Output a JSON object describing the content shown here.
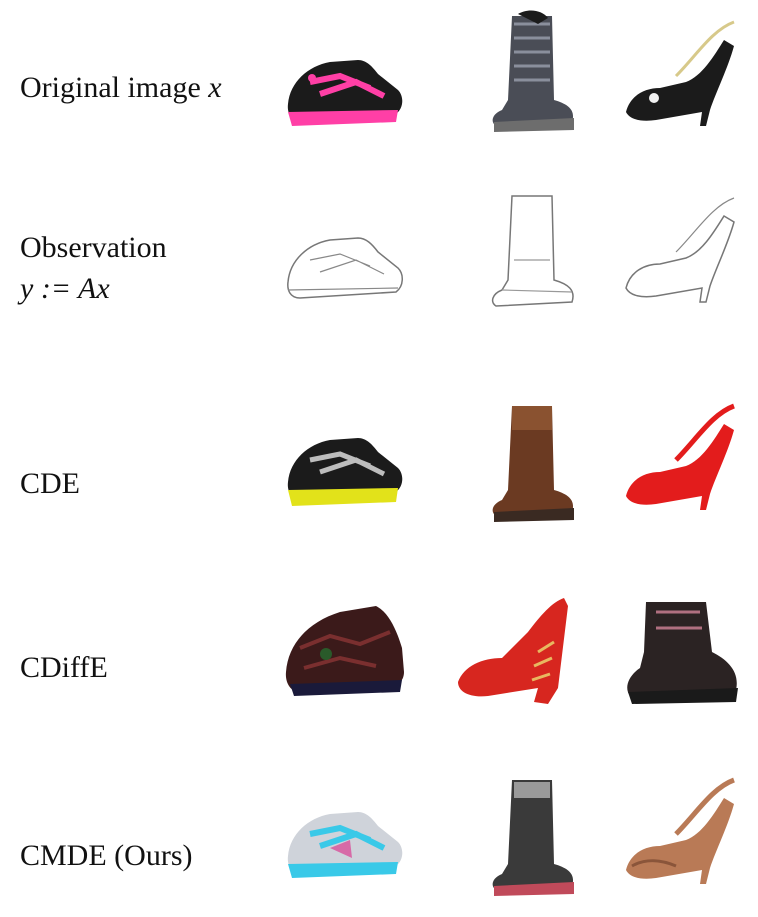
{
  "rows": [
    {
      "label": "Original image",
      "math": "x"
    },
    {
      "label": "Observation",
      "math_line2": "y := Ax"
    },
    {
      "label": "CDE"
    },
    {
      "label": "CDiffE"
    },
    {
      "label": "CMDE (Ours)"
    }
  ],
  "colors": {
    "original": [
      "#ff3fa6",
      "#5a5f6a",
      "#1b1b1b"
    ],
    "cde": [
      "#e2e21a",
      "#6b3a22",
      "#e31c1c"
    ],
    "cdiffe": [
      "#3b1a1a",
      "#d7261f",
      "#2b2323"
    ],
    "cmde": [
      "#39c9e8",
      "#3a3a3a",
      "#b97a56"
    ]
  },
  "icons": [
    "sneaker-icon",
    "boot-icon",
    "high-heel-icon"
  ]
}
